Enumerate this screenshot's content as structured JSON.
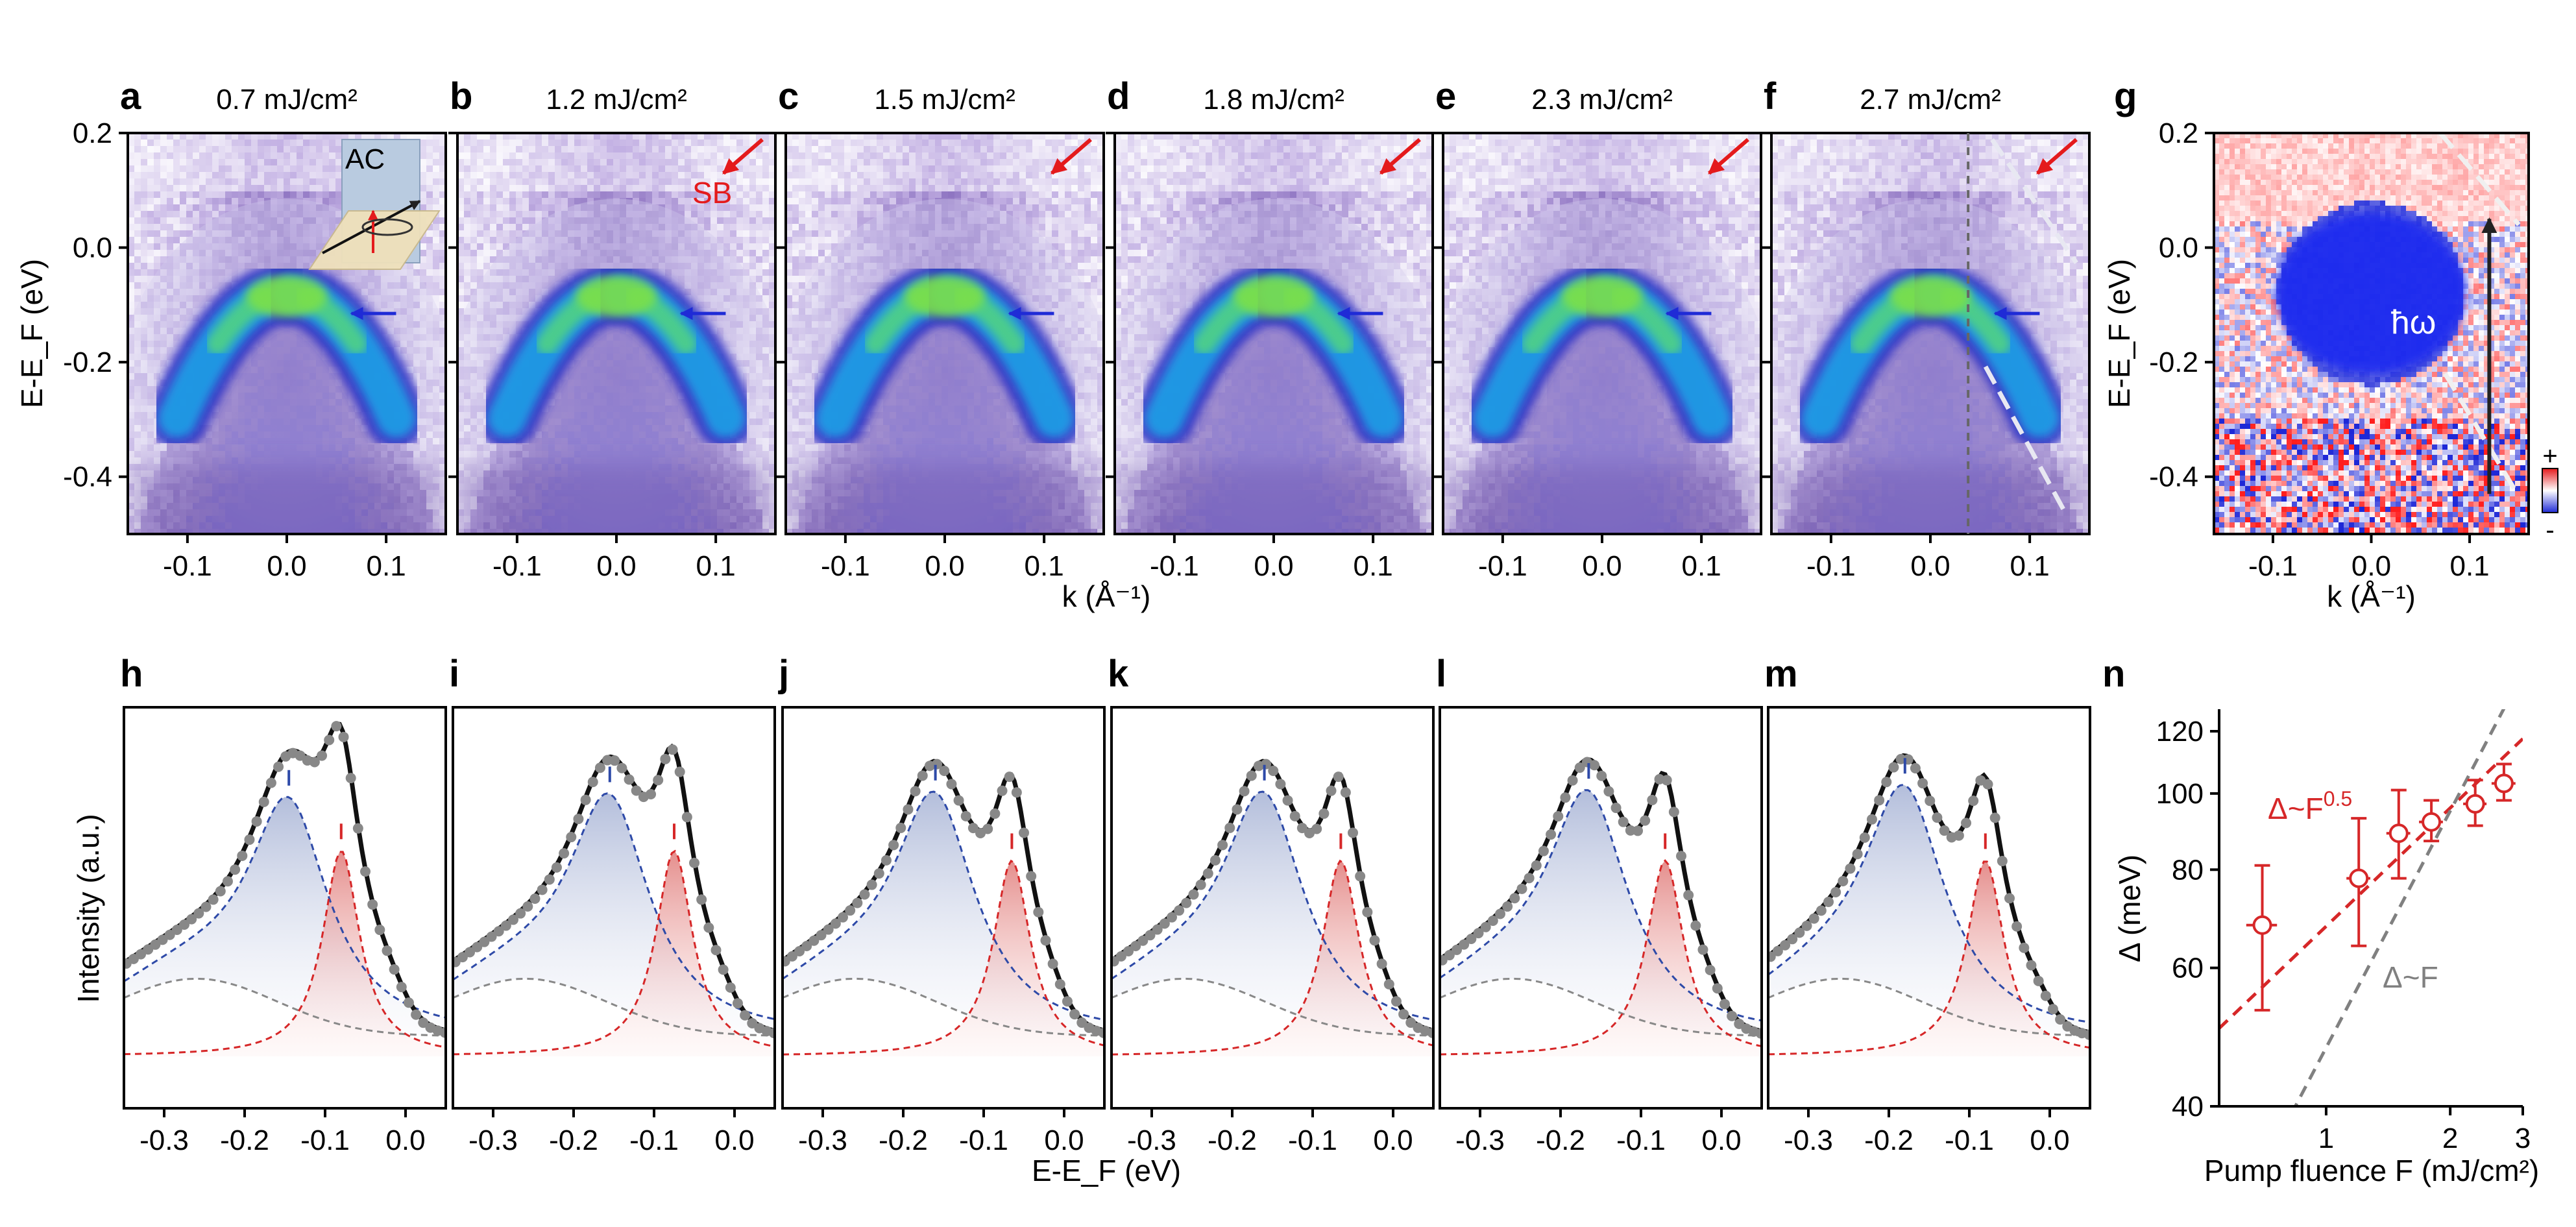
{
  "chart_data": [
    {
      "type": "heatmap",
      "role": "ARPES energy-momentum maps",
      "panels": [
        {
          "letter": "a",
          "label": "0.7 mJ/cm²"
        },
        {
          "letter": "b",
          "label": "1.2 mJ/cm²"
        },
        {
          "letter": "c",
          "label": "1.5 mJ/cm²"
        },
        {
          "letter": "d",
          "label": "1.8 mJ/cm²"
        },
        {
          "letter": "e",
          "label": "2.3 mJ/cm²"
        },
        {
          "letter": "f",
          "label": "2.7 mJ/cm²"
        }
      ],
      "xlabel": "k (Å⁻¹)",
      "ylabel": "E-E_F (eV)",
      "xlim": [
        -0.16,
        0.16
      ],
      "ylim": [
        -0.5,
        0.2
      ],
      "xticks": [
        -0.1,
        0.0,
        0.1
      ],
      "xticklabels": [
        "-0.1",
        "0.0",
        "0.1"
      ],
      "yticks": [
        0.2,
        0.0,
        -0.2,
        -0.4
      ],
      "yticklabels": [
        "0.2",
        "0.0",
        "-0.2",
        "-0.4"
      ],
      "gap_arrow_energy_eV": -0.115,
      "annotations": {
        "inset_label": "AC",
        "sideband_label": "SB"
      }
    },
    {
      "type": "heatmap",
      "role": "difference map",
      "panel": {
        "letter": "g"
      },
      "xlabel": "k (Å⁻¹)",
      "ylabel": "E-E_F (eV)",
      "xlim": [
        -0.16,
        0.16
      ],
      "ylim": [
        -0.5,
        0.2
      ],
      "xticks": [
        -0.1,
        0.0,
        0.1
      ],
      "xticklabels": [
        "-0.1",
        "0.0",
        "0.1"
      ],
      "yticks": [
        0.2,
        0.0,
        -0.2,
        -0.4
      ],
      "yticklabels": [
        "0.2",
        "0.0",
        "-0.2",
        "-0.4"
      ],
      "arrow_label": "ħω",
      "colorbar_labels": [
        "+",
        "-"
      ]
    },
    {
      "type": "line",
      "role": "EDC fits",
      "panels": [
        {
          "letter": "h",
          "peak_lower": -0.145,
          "peak_upper": -0.08
        },
        {
          "letter": "i",
          "peak_lower": -0.155,
          "peak_upper": -0.075
        },
        {
          "letter": "j",
          "peak_lower": -0.16,
          "peak_upper": -0.065
        },
        {
          "letter": "k",
          "peak_lower": -0.16,
          "peak_upper": -0.065
        },
        {
          "letter": "l",
          "peak_lower": -0.165,
          "peak_upper": -0.07
        },
        {
          "letter": "m",
          "peak_lower": -0.18,
          "peak_upper": -0.08
        }
      ],
      "xlabel": "E-E_F (eV)",
      "ylabel": "Intensity (a.u.)",
      "xlim": [
        -0.35,
        0.05
      ],
      "xticks": [
        -0.3,
        -0.2,
        -0.1,
        0.0
      ],
      "xticklabels": [
        "-0.3",
        "-0.2",
        "-0.1",
        "0.0"
      ]
    },
    {
      "type": "scatter",
      "role": "gap vs fluence",
      "panel": {
        "letter": "n"
      },
      "xscale": "log",
      "yscale": "log",
      "xlabel": "Pump fluence F (mJ/cm²)",
      "ylabel": "Δ (meV)",
      "xlim": [
        0.55,
        3.0
      ],
      "ylim": [
        40,
        128
      ],
      "xticks": [
        1,
        2,
        3
      ],
      "xticklabels": [
        "1",
        "2",
        "3"
      ],
      "yticks": [
        40,
        60,
        80,
        100,
        120
      ],
      "yticklabels": [
        "40",
        "60",
        "80",
        "100",
        "120"
      ],
      "points": [
        {
          "x": 0.7,
          "y": 68,
          "xerr": 0.06,
          "yerr_low": 15,
          "yerr_high": 13
        },
        {
          "x": 1.2,
          "y": 78,
          "xerr": 0.08,
          "yerr_low": 14,
          "yerr_high": 15
        },
        {
          "x": 1.5,
          "y": 89,
          "xerr": 0.1,
          "yerr_low": 11,
          "yerr_high": 12
        },
        {
          "x": 1.8,
          "y": 92,
          "xerr": 0.12,
          "yerr_low": 5,
          "yerr_high": 6
        },
        {
          "x": 2.3,
          "y": 97,
          "xerr": 0.15,
          "yerr_low": 6,
          "yerr_high": 7
        },
        {
          "x": 2.7,
          "y": 103,
          "xerr": 0.18,
          "yerr_low": 5,
          "yerr_high": 6
        }
      ],
      "fits": [
        {
          "label": "Δ~F^0.5",
          "label_base": "Δ~F",
          "label_exp": "0.5",
          "exponent": 0.5,
          "anchor_x": 1.5,
          "anchor_y": 83,
          "color": "#d62728"
        },
        {
          "label": "Δ~F",
          "label_base": "Δ~F",
          "label_exp": "",
          "exponent": 1.0,
          "anchor_x": 2.0,
          "anchor_y": 95,
          "color": "#808080"
        }
      ]
    }
  ]
}
